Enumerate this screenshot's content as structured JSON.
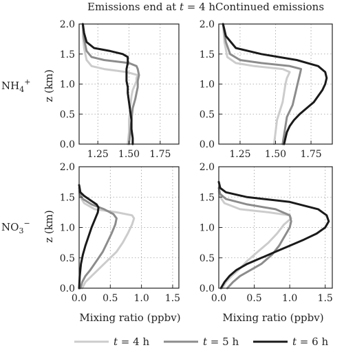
{
  "colors": {
    "t4": "#cccccc",
    "t5": "#8c8c8c",
    "t6": "#1a1a1a",
    "axis": "#222222",
    "grid": "#9a9a9a"
  },
  "chart_data": [
    {
      "type": "line",
      "title": "Emissions end at t = 4 h",
      "row_label": "NH4+",
      "ylabel": "z (km)",
      "xlabel": "",
      "xlim": [
        1.1,
        1.9
      ],
      "ylim": [
        0.0,
        2.0
      ],
      "xticks": [
        "1.25",
        "1.50",
        "1.75"
      ],
      "yticks": [
        "0.0",
        "0.5",
        "1.0",
        "1.5",
        "2.0"
      ],
      "grid": true,
      "series": [
        {
          "name": "t = 4 h",
          "x": [
            1.49,
            1.5,
            1.5,
            1.51,
            1.52,
            1.53,
            1.55,
            1.56,
            1.56,
            1.57,
            1.48,
            1.3,
            1.2,
            1.16,
            1.14,
            1.13,
            1.13
          ],
          "y": [
            0.0,
            0.2,
            0.4,
            0.6,
            0.8,
            0.9,
            1.0,
            1.05,
            1.1,
            1.15,
            1.2,
            1.25,
            1.3,
            1.4,
            1.6,
            1.8,
            2.0
          ]
        },
        {
          "name": "t = 5 h",
          "x": [
            1.5,
            1.51,
            1.52,
            1.53,
            1.55,
            1.56,
            1.57,
            1.57,
            1.58,
            1.57,
            1.56,
            1.5,
            1.3,
            1.2,
            1.16,
            1.14,
            1.13
          ],
          "y": [
            0.0,
            0.2,
            0.4,
            0.6,
            0.75,
            0.85,
            0.95,
            1.05,
            1.15,
            1.25,
            1.3,
            1.35,
            1.4,
            1.45,
            1.55,
            1.75,
            2.0
          ]
        },
        {
          "name": "t = 6 h",
          "x": [
            1.53,
            1.53,
            1.52,
            1.52,
            1.51,
            1.5,
            1.49,
            1.49,
            1.48,
            1.48,
            1.48,
            1.49,
            1.49,
            1.45,
            1.35,
            1.22,
            1.16,
            1.14,
            1.13
          ],
          "y": [
            0.0,
            0.1,
            0.25,
            0.4,
            0.55,
            0.7,
            0.85,
            0.95,
            1.05,
            1.15,
            1.25,
            1.35,
            1.45,
            1.5,
            1.55,
            1.6,
            1.7,
            1.85,
            2.0
          ]
        }
      ]
    },
    {
      "type": "line",
      "title": "Continued emissions",
      "row_label": "",
      "ylabel": "",
      "xlabel": "",
      "xlim": [
        1.1,
        1.9
      ],
      "ylim": [
        0.0,
        2.0
      ],
      "xticks": [
        "1.25",
        "1.50",
        "1.75"
      ],
      "yticks": [
        "0.0",
        "0.5",
        "1.0",
        "1.5",
        "2.0"
      ],
      "grid": true,
      "series": [
        {
          "name": "t = 4 h",
          "x": [
            1.49,
            1.5,
            1.51,
            1.53,
            1.55,
            1.56,
            1.57,
            1.58,
            1.59,
            1.6,
            1.55,
            1.35,
            1.22,
            1.16,
            1.14,
            1.13
          ],
          "y": [
            0.0,
            0.2,
            0.4,
            0.55,
            0.7,
            0.85,
            1.0,
            1.1,
            1.15,
            1.2,
            1.25,
            1.3,
            1.35,
            1.45,
            1.7,
            2.0
          ]
        },
        {
          "name": "t = 5 h",
          "x": [
            1.55,
            1.56,
            1.57,
            1.58,
            1.6,
            1.62,
            1.63,
            1.64,
            1.65,
            1.66,
            1.67,
            1.68,
            1.6,
            1.4,
            1.25,
            1.18,
            1.15,
            1.13
          ],
          "y": [
            0.0,
            0.15,
            0.3,
            0.45,
            0.55,
            0.65,
            0.75,
            0.85,
            0.95,
            1.05,
            1.15,
            1.25,
            1.3,
            1.35,
            1.4,
            1.5,
            1.7,
            2.0
          ]
        },
        {
          "name": "t = 6 h",
          "x": [
            1.56,
            1.57,
            1.58,
            1.6,
            1.63,
            1.67,
            1.72,
            1.77,
            1.8,
            1.83,
            1.85,
            1.86,
            1.85,
            1.8,
            1.65,
            1.4,
            1.22,
            1.15,
            1.13
          ],
          "y": [
            0.0,
            0.1,
            0.2,
            0.3,
            0.4,
            0.5,
            0.6,
            0.7,
            0.8,
            0.9,
            1.0,
            1.1,
            1.2,
            1.3,
            1.4,
            1.5,
            1.6,
            1.8,
            2.0
          ]
        }
      ]
    },
    {
      "type": "line",
      "title": "",
      "row_label": "NO3−",
      "ylabel": "z (km)",
      "xlabel": "Mixing ratio (ppbv)",
      "xlim": [
        0.0,
        1.6
      ],
      "ylim": [
        0.0,
        2.0
      ],
      "xticks": [
        "0.0",
        "0.5",
        "1.0",
        "1.5"
      ],
      "yticks": [
        "0.0",
        "0.5",
        "1.0",
        "1.5",
        "2.0"
      ],
      "grid": true,
      "series": [
        {
          "name": "t = 4 h",
          "x": [
            0.05,
            0.1,
            0.2,
            0.3,
            0.45,
            0.6,
            0.7,
            0.78,
            0.85,
            0.88,
            0.85,
            0.6,
            0.25,
            0.08,
            0.02,
            0.0
          ],
          "y": [
            0.0,
            0.1,
            0.2,
            0.3,
            0.45,
            0.6,
            0.75,
            0.9,
            1.05,
            1.15,
            1.2,
            1.25,
            1.3,
            1.4,
            1.5,
            1.6
          ]
        },
        {
          "name": "t = 5 h",
          "x": [
            0.02,
            0.05,
            0.1,
            0.18,
            0.28,
            0.38,
            0.45,
            0.52,
            0.58,
            0.6,
            0.55,
            0.4,
            0.2,
            0.06,
            0.01,
            0.0
          ],
          "y": [
            0.0,
            0.1,
            0.2,
            0.3,
            0.45,
            0.6,
            0.75,
            0.9,
            1.05,
            1.15,
            1.22,
            1.3,
            1.38,
            1.47,
            1.55,
            1.65
          ]
        },
        {
          "name": "t = 6 h",
          "x": [
            0.0,
            0.01,
            0.03,
            0.06,
            0.1,
            0.15,
            0.2,
            0.26,
            0.3,
            0.31,
            0.28,
            0.18,
            0.08,
            0.02,
            0.0
          ],
          "y": [
            0.0,
            0.2,
            0.4,
            0.55,
            0.7,
            0.85,
            1.0,
            1.15,
            1.25,
            1.33,
            1.38,
            1.45,
            1.52,
            1.58,
            1.7
          ]
        }
      ]
    },
    {
      "type": "line",
      "title": "",
      "row_label": "",
      "ylabel": "",
      "xlabel": "Mixing ratio (ppbv)",
      "xlim": [
        0.0,
        1.6
      ],
      "ylim": [
        0.0,
        2.0
      ],
      "xticks": [
        "0.0",
        "0.5",
        "1.0",
        "1.5"
      ],
      "yticks": [
        "0.0",
        "0.5",
        "1.0",
        "1.5",
        "2.0"
      ],
      "grid": true,
      "series": [
        {
          "name": "t = 4 h",
          "x": [
            0.05,
            0.1,
            0.18,
            0.28,
            0.4,
            0.55,
            0.7,
            0.82,
            0.92,
            1.02,
            1.0,
            0.7,
            0.3,
            0.08,
            0.02,
            0.0
          ],
          "y": [
            0.0,
            0.1,
            0.2,
            0.3,
            0.45,
            0.6,
            0.75,
            0.9,
            1.05,
            1.15,
            1.2,
            1.25,
            1.3,
            1.4,
            1.5,
            1.6
          ]
        },
        {
          "name": "t = 5 h",
          "x": [
            0.12,
            0.2,
            0.3,
            0.45,
            0.6,
            0.75,
            0.85,
            0.9,
            0.95,
            1.0,
            1.02,
            1.0,
            0.8,
            0.4,
            0.1,
            0.02,
            0.0
          ],
          "y": [
            0.0,
            0.1,
            0.2,
            0.3,
            0.4,
            0.55,
            0.7,
            0.8,
            0.9,
            1.0,
            1.1,
            1.2,
            1.3,
            1.38,
            1.47,
            1.55,
            1.65
          ]
        },
        {
          "name": "t = 6 h",
          "x": [
            0.03,
            0.08,
            0.15,
            0.25,
            0.4,
            0.6,
            0.8,
            1.0,
            1.2,
            1.38,
            1.5,
            1.55,
            1.52,
            1.4,
            1.0,
            0.4,
            0.1,
            0.02,
            0.0
          ],
          "y": [
            0.0,
            0.1,
            0.2,
            0.3,
            0.4,
            0.5,
            0.6,
            0.7,
            0.8,
            0.9,
            1.0,
            1.1,
            1.2,
            1.3,
            1.42,
            1.5,
            1.58,
            1.65,
            1.75
          ]
        }
      ]
    }
  ],
  "legend": [
    {
      "key": "t4",
      "var": "t",
      "eq": " = ",
      "val": "4 h"
    },
    {
      "key": "t5",
      "var": "t",
      "eq": " = ",
      "val": "5 h"
    },
    {
      "key": "t6",
      "var": "t",
      "eq": " = ",
      "val": "6 h"
    }
  ],
  "legend_placement": "bottom"
}
